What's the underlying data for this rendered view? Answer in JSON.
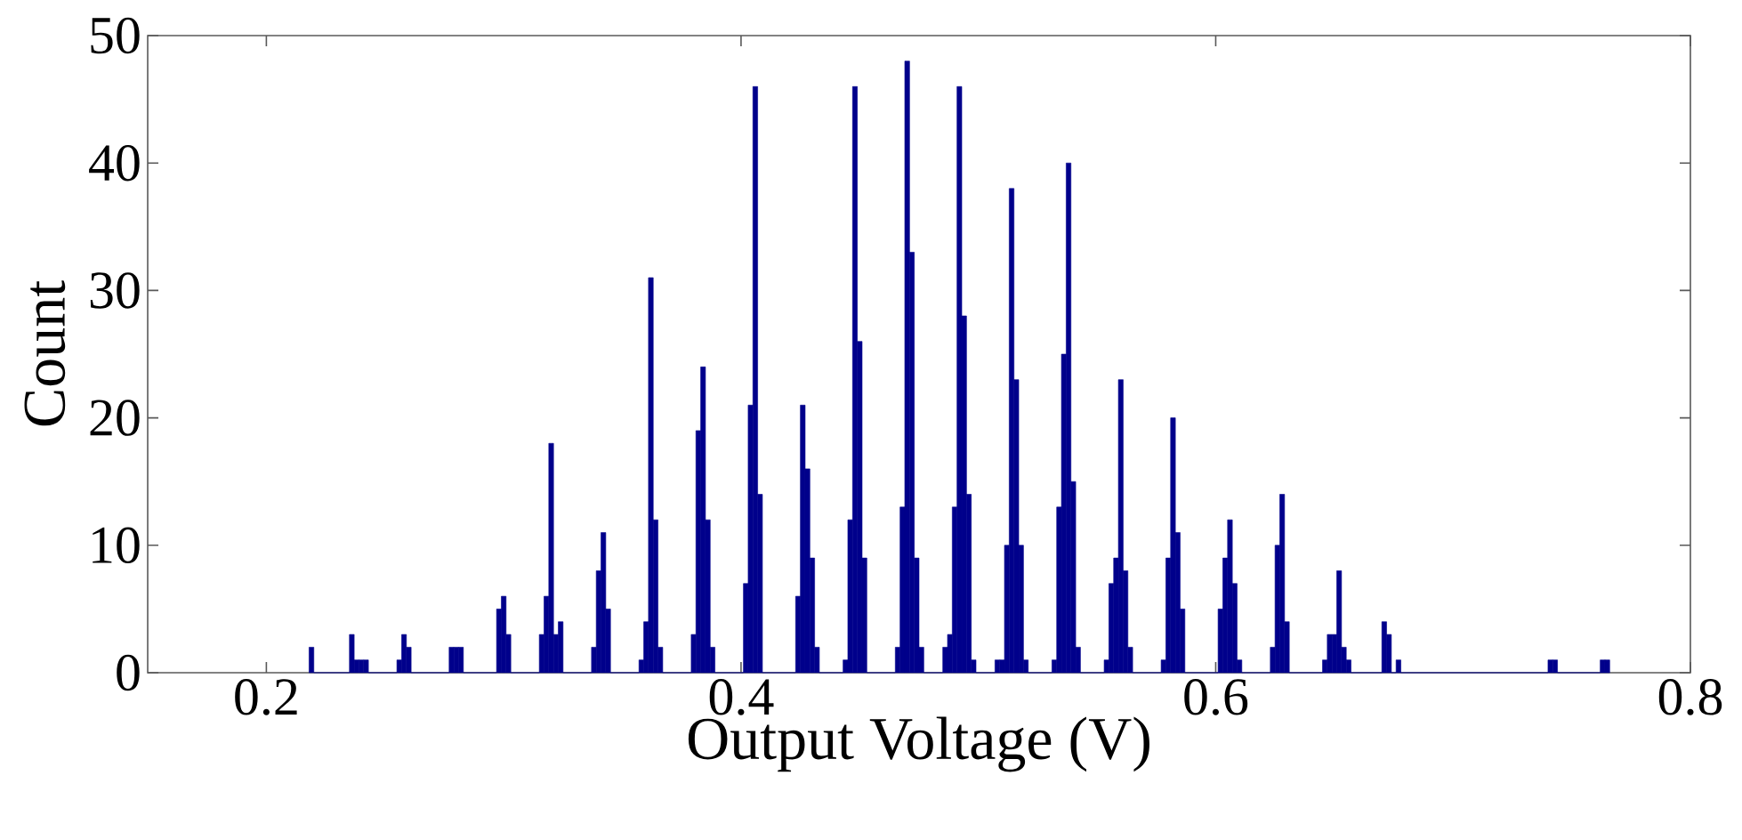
{
  "chart_data": {
    "type": "histogram",
    "xlabel": "Output Voltage (V)",
    "ylabel": "Count",
    "color": "#00008b",
    "bins": [
      0.218,
      0.22,
      0.235,
      0.237,
      0.239,
      0.241,
      0.243,
      0.255,
      0.257,
      0.259,
      0.261,
      0.277,
      0.279,
      0.281,
      0.283,
      0.297,
      0.299,
      0.301,
      0.303,
      0.315,
      0.317,
      0.319,
      0.321,
      0.323,
      0.325,
      0.337,
      0.339,
      0.341,
      0.343,
      0.345,
      0.357,
      0.359,
      0.361,
      0.363,
      0.365,
      0.367,
      0.379,
      0.381,
      0.383,
      0.385,
      0.387,
      0.389,
      0.401,
      0.403,
      0.405,
      0.407,
      0.409,
      0.423,
      0.425,
      0.427,
      0.429,
      0.431,
      0.433,
      0.443,
      0.445,
      0.447,
      0.449,
      0.451,
      0.453,
      0.465,
      0.467,
      0.469,
      0.471,
      0.473,
      0.475,
      0.477,
      0.485,
      0.487,
      0.489,
      0.491,
      0.493,
      0.495,
      0.497,
      0.499,
      0.507,
      0.509,
      0.511,
      0.513,
      0.515,
      0.517,
      0.519,
      0.521,
      0.531,
      0.533,
      0.535,
      0.537,
      0.539,
      0.541,
      0.543,
      0.553,
      0.555,
      0.557,
      0.559,
      0.561,
      0.563,
      0.565,
      0.577,
      0.579,
      0.581,
      0.583,
      0.585,
      0.587,
      0.601,
      0.603,
      0.605,
      0.607,
      0.609,
      0.611,
      0.623,
      0.625,
      0.627,
      0.629,
      0.631,
      0.645,
      0.647,
      0.649,
      0.651,
      0.653,
      0.655,
      0.657,
      0.67,
      0.672,
      0.674,
      0.676,
      0.678,
      0.74,
      0.742,
      0.744,
      0.762,
      0.764,
      0.766
    ],
    "values": [
      2,
      0,
      3,
      1,
      1,
      1,
      0,
      1,
      3,
      2,
      0,
      2,
      2,
      2,
      0,
      5,
      6,
      3,
      0,
      3,
      6,
      18,
      3,
      4,
      0,
      2,
      8,
      11,
      5,
      0,
      1,
      4,
      31,
      12,
      2,
      0,
      3,
      19,
      24,
      12,
      2,
      0,
      7,
      21,
      46,
      14,
      0,
      6,
      21,
      16,
      9,
      2,
      0,
      1,
      12,
      46,
      26,
      9,
      0,
      2,
      13,
      48,
      33,
      9,
      2,
      0,
      2,
      3,
      13,
      46,
      28,
      14,
      1,
      0,
      1,
      1,
      10,
      38,
      23,
      10,
      1,
      0,
      1,
      13,
      25,
      40,
      15,
      2,
      0,
      1,
      7,
      9,
      23,
      8,
      2,
      0,
      1,
      9,
      20,
      11,
      5,
      0,
      5,
      9,
      12,
      7,
      1,
      0,
      2,
      10,
      14,
      4,
      0,
      1,
      3,
      3,
      8,
      2,
      1,
      0,
      4,
      3,
      0,
      1,
      0,
      1,
      1,
      0,
      1,
      1
    ],
    "xlim": [
      0.15,
      0.8
    ],
    "xticks": [
      0.2,
      0.4,
      0.6,
      0.8
    ],
    "ylim": [
      0,
      50
    ],
    "yticks": [
      0,
      10,
      20,
      30,
      40,
      50
    ],
    "grid": false
  }
}
